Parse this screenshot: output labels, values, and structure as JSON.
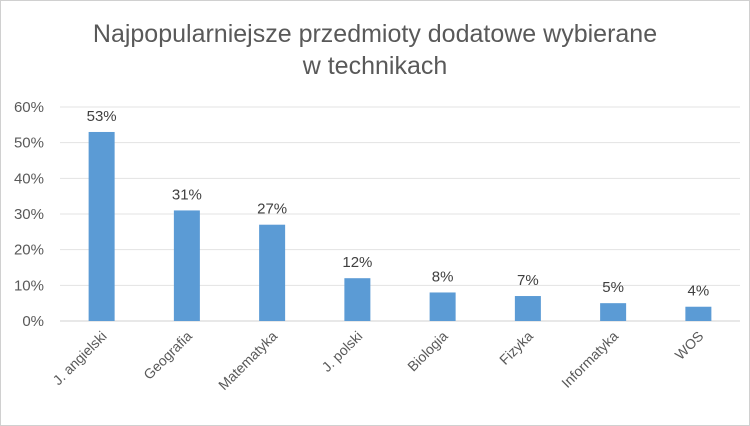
{
  "chart_data": {
    "type": "bar",
    "title_line1": "Najpopularniejsze przedmioty dodatowe wybierane",
    "title_line2": "w technikach",
    "categories": [
      "J. angielski",
      "Geografia",
      "Matematyka",
      "J. polski",
      "Biologia",
      "Fizyka",
      "Informatyka",
      "WOS"
    ],
    "values": [
      53,
      31,
      27,
      12,
      8,
      7,
      5,
      4
    ],
    "value_labels": [
      "53%",
      "31%",
      "27%",
      "12%",
      "8%",
      "7%",
      "5%",
      "4%"
    ],
    "ylim": [
      0,
      60
    ],
    "yticks": [
      0,
      10,
      20,
      30,
      40,
      50,
      60
    ],
    "ytick_labels": [
      "0%",
      "10%",
      "20%",
      "30%",
      "40%",
      "50%",
      "60%"
    ],
    "grid": true,
    "legend": "none",
    "bar_color": "#5b9bd5"
  }
}
